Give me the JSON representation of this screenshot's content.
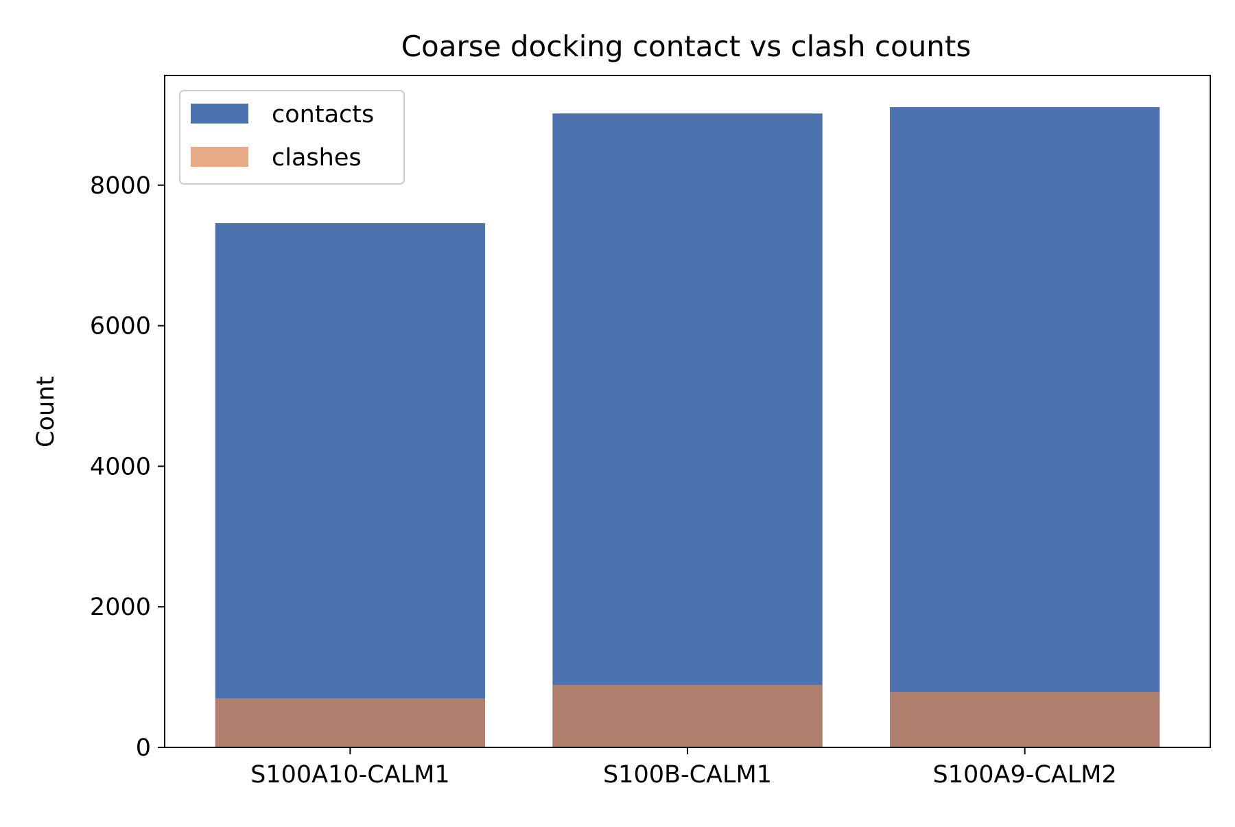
{
  "chart_data": {
    "type": "bar",
    "title": "Coarse docking contact vs clash counts",
    "xlabel": "",
    "ylabel": "Count",
    "categories": [
      "S100A10-CALM1",
      "S100B-CALM1",
      "S100A9-CALM2"
    ],
    "series": [
      {
        "name": "contacts",
        "values": [
          7460,
          9020,
          9110
        ],
        "color": "#4c72b0"
      },
      {
        "name": "clashes",
        "values": [
          700,
          890,
          790
        ],
        "color": "#dd8452",
        "opacity": 0.7
      }
    ],
    "ylim": [
      0,
      9560
    ],
    "yticks": [
      0,
      2000,
      4000,
      6000,
      8000
    ],
    "grid": false,
    "legend_position": "top-left"
  }
}
